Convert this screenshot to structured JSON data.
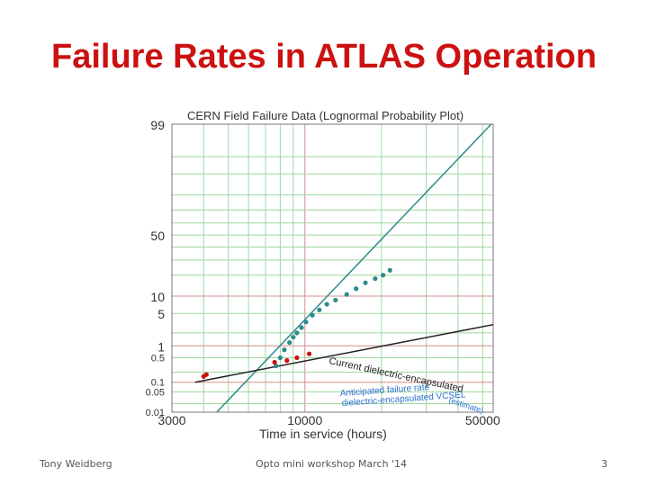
{
  "slide": {
    "title": "Failure Rates in ATLAS Operation",
    "footer_left": "Tony Weidberg",
    "footer_center": "Opto mini workshop March '14",
    "footer_right": "3"
  },
  "chart_data": {
    "type": "scatter",
    "title": "CERN Field Failure Data (Lognormal Probability Plot)",
    "xlabel": "Time in service (hours)",
    "ylabel": "",
    "x_scale": "log",
    "y_scale": "lognormal-probability",
    "xlim": [
      3000,
      55000
    ],
    "ylim": [
      0.01,
      99
    ],
    "x_tick_labels": [
      {
        "value": 3000,
        "label": "3000"
      },
      {
        "value": 10000,
        "label": "10000"
      },
      {
        "value": 50000,
        "label": "50000"
      }
    ],
    "y_tick_labels": [
      {
        "value": 99,
        "label": "99"
      },
      {
        "value": 50,
        "label": "50"
      },
      {
        "value": 10,
        "label": "10"
      },
      {
        "value": 5,
        "label": "5"
      },
      {
        "value": 1,
        "label": "1"
      },
      {
        "value": 0.5,
        "label": "0.5"
      },
      {
        "value": 0.1,
        "label": "0.1"
      },
      {
        "value": 0.05,
        "label": "0.05"
      },
      {
        "value": 0.01,
        "label": "0.01"
      }
    ],
    "grid": true,
    "colors": {
      "teal": "#2e8b8b",
      "dark": "#222222",
      "red": "#cc1111",
      "blue": "#2a6fd0",
      "grid_green": "#9ed89e",
      "grid_red": "#d98c8c",
      "accent_title": "#cc1111"
    },
    "series": [
      {
        "name": "",
        "kind": "fit-line",
        "color": "#2e8b8b",
        "points": [
          [
            4500,
            0.01
          ],
          [
            54000,
            99
          ]
        ]
      },
      {
        "name": "",
        "kind": "fit-line",
        "color": "#222222",
        "points": [
          [
            3700,
            0.1
          ],
          [
            55000,
            3
          ]
        ]
      },
      {
        "name": "",
        "kind": "points",
        "color": "#2e8b8b",
        "points": [
          [
            7700,
            0.3
          ],
          [
            8000,
            0.5
          ],
          [
            8300,
            0.8
          ],
          [
            8700,
            1.2
          ],
          [
            9000,
            1.6
          ],
          [
            9300,
            2.0
          ],
          [
            9700,
            2.6
          ],
          [
            10100,
            3.4
          ],
          [
            10700,
            4.6
          ],
          [
            11400,
            5.8
          ],
          [
            12200,
            7.3
          ],
          [
            13200,
            8.6
          ],
          [
            14600,
            10.6
          ],
          [
            15900,
            13
          ],
          [
            17300,
            15.8
          ],
          [
            18900,
            18
          ],
          [
            20300,
            20
          ],
          [
            21600,
            23
          ]
        ]
      },
      {
        "name": "",
        "kind": "points",
        "color": "#cc1111",
        "points": [
          [
            4000,
            0.15
          ],
          [
            4100,
            0.17
          ],
          [
            7600,
            0.38
          ],
          [
            8500,
            0.42
          ],
          [
            9300,
            0.5
          ],
          [
            10400,
            0.63
          ]
        ]
      }
    ],
    "annotations": [
      {
        "text": "Current dielectric-encapsulated",
        "color": "#222222"
      },
      {
        "text": "Anticipated failure rate",
        "color": "#2a6fd0"
      },
      {
        "text": "dielectric-encapsulated VCSEL",
        "color": "#2a6fd0"
      },
      {
        "text": "(estimate)",
        "color": "#2a6fd0"
      }
    ]
  }
}
